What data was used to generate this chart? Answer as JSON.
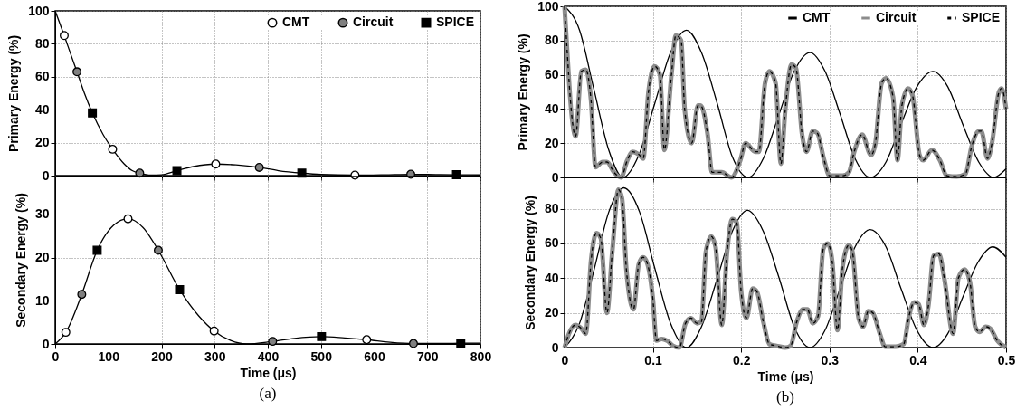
{
  "chart_data": [
    {
      "type": "line",
      "ylabel": "Primary Energy (%)",
      "xlim": [
        0,
        800
      ],
      "xticks": [
        0,
        100,
        200,
        300,
        400,
        500,
        600,
        700,
        800
      ],
      "ylim": [
        0,
        100
      ],
      "yticks": [
        0,
        20,
        40,
        60,
        80,
        100
      ],
      "tick_labels": "y",
      "grid": true,
      "legend": "top right",
      "series": [
        {
          "color": "#000000",
          "x": [
            0,
            17,
            30,
            41,
            55,
            70,
            90,
            108,
            130,
            145,
            159,
            180,
            200,
            229,
            260,
            302,
            340,
            384,
            420,
            464,
            500,
            564,
            620,
            669,
            720,
            755,
            800
          ],
          "values": [
            100,
            85,
            73,
            63,
            50,
            38,
            25,
            16,
            7,
            3,
            1.5,
            0.3,
            0.5,
            3,
            5.5,
            7,
            6.5,
            5,
            3,
            1.5,
            0.7,
            0.3,
            0.5,
            0.8,
            0.6,
            0.5,
            0.4
          ]
        },
        {
          "name": "CMT",
          "type": "scatter",
          "marker": "circle",
          "color": "#ffffff",
          "x": [
            17,
            108,
            302,
            564
          ],
          "values": [
            85,
            16,
            7,
            0.3
          ]
        },
        {
          "name": "Circuit",
          "type": "scatter",
          "marker": "circle",
          "color": "#808080",
          "x": [
            41,
            159,
            384,
            669
          ],
          "values": [
            63,
            1.5,
            5,
            0.8
          ]
        },
        {
          "name": "SPICE",
          "type": "scatter",
          "marker": "square",
          "color": "#000000",
          "x": [
            70,
            229,
            464,
            755
          ],
          "values": [
            38,
            3,
            1.5,
            0.5
          ]
        }
      ]
    },
    {
      "type": "line",
      "ylabel": "Primary Energy (%)",
      "xlim": [
        0,
        0.5
      ],
      "xticks": [
        0,
        0.1,
        0.2,
        0.3,
        0.4,
        0.5
      ],
      "ylim": [
        0,
        100
      ],
      "yticks": [
        0,
        20,
        40,
        60,
        80,
        100
      ],
      "tick_labels": "y",
      "grid": true,
      "legend": "top right",
      "series": [
        {
          "name": "CMT",
          "color": "#000000",
          "line_style": "solid",
          "x": [
            0,
            0.017,
            0.033,
            0.05,
            0.066,
            0.084,
            0.102,
            0.12,
            0.138,
            0.155,
            0.173,
            0.19,
            0.208,
            0.225,
            0.243,
            0.26,
            0.278,
            0.295,
            0.312,
            0.329,
            0.346,
            0.364,
            0.381,
            0.399,
            0.417,
            0.434,
            0.451,
            0.469,
            0.486,
            0.5
          ],
          "values": [
            100,
            86,
            52,
            16,
            0,
            13,
            43,
            73,
            86,
            73,
            43,
            12,
            0,
            11,
            37,
            62,
            73,
            62,
            37,
            11,
            0,
            9,
            31,
            53,
            62,
            53,
            31,
            9,
            0,
            5
          ]
        },
        {
          "name": "Circuit",
          "color": "#8c8c8c",
          "line_style": "solid",
          "x": [
            0,
            0.0125,
            0.019,
            0.024,
            0.03,
            0.035,
            0.043,
            0.048,
            0.056,
            0.064,
            0.071,
            0.077,
            0.085,
            0.089,
            0.095,
            0.102,
            0.108,
            0.113,
            0.121,
            0.126,
            0.132,
            0.136,
            0.144,
            0.151,
            0.154,
            0.162,
            0.167,
            0.178,
            0.189,
            0.199,
            0.205,
            0.216,
            0.22,
            0.227,
            0.232,
            0.239,
            0.245,
            0.25,
            0.257,
            0.262,
            0.269,
            0.274,
            0.281,
            0.286,
            0.294,
            0.3,
            0.315,
            0.322,
            0.328,
            0.337,
            0.347,
            0.352,
            0.359,
            0.364,
            0.372,
            0.377,
            0.382,
            0.389,
            0.394,
            0.402,
            0.406,
            0.416,
            0.425,
            0.433,
            0.444,
            0.454,
            0.461,
            0.469,
            0.472,
            0.479,
            0.484,
            0.492,
            0.495,
            0.5
          ],
          "values": [
            100,
            24,
            62,
            63,
            45,
            6,
            9,
            9,
            3,
            0,
            10,
            15,
            13,
            11,
            50,
            65,
            60,
            16,
            60,
            83,
            80,
            40,
            20,
            42,
            42,
            25,
            3,
            3,
            0,
            10,
            20,
            15,
            15,
            55,
            62,
            55,
            8,
            40,
            66,
            64,
            25,
            15,
            27,
            26,
            10,
            1,
            1,
            3,
            15,
            25,
            13,
            20,
            55,
            58,
            47,
            10,
            42,
            52,
            48,
            13,
            10,
            16,
            10,
            1,
            0.5,
            2,
            18,
            27,
            27,
            11,
            20,
            50,
            52,
            40
          ]
        },
        {
          "name": "SPICE",
          "color": "#000000",
          "line_style": "dashed",
          "x": [
            0,
            0.0125,
            0.019,
            0.024,
            0.03,
            0.035,
            0.043,
            0.048,
            0.056,
            0.064,
            0.071,
            0.077,
            0.085,
            0.089,
            0.095,
            0.102,
            0.108,
            0.113,
            0.121,
            0.126,
            0.132,
            0.136,
            0.144,
            0.151,
            0.154,
            0.162,
            0.167,
            0.178,
            0.189,
            0.199,
            0.205,
            0.216,
            0.22,
            0.227,
            0.232,
            0.239,
            0.245,
            0.25,
            0.257,
            0.262,
            0.269,
            0.274,
            0.281,
            0.286,
            0.294,
            0.3,
            0.315,
            0.322,
            0.328,
            0.337,
            0.347,
            0.352,
            0.359,
            0.364,
            0.372,
            0.377,
            0.382,
            0.389,
            0.394,
            0.402,
            0.406,
            0.416,
            0.425,
            0.433,
            0.444,
            0.454,
            0.461,
            0.469,
            0.472,
            0.479,
            0.484,
            0.492,
            0.495,
            0.5
          ],
          "values": [
            100,
            24,
            62,
            63,
            45,
            6,
            9,
            9,
            3,
            0,
            10,
            15,
            13,
            11,
            50,
            65,
            60,
            16,
            60,
            83,
            80,
            40,
            20,
            42,
            42,
            25,
            3,
            3,
            0,
            10,
            20,
            15,
            15,
            55,
            62,
            55,
            8,
            40,
            66,
            64,
            25,
            15,
            27,
            26,
            10,
            1,
            1,
            3,
            15,
            25,
            13,
            20,
            55,
            58,
            47,
            10,
            42,
            52,
            48,
            13,
            10,
            16,
            10,
            1,
            0.5,
            2,
            18,
            27,
            27,
            11,
            20,
            50,
            52,
            40
          ]
        }
      ]
    },
    {
      "type": "line",
      "xlabel": "Time (μs)",
      "ylabel": "Secondary Energy (%)",
      "xlim": [
        0,
        800
      ],
      "xticks": [
        0,
        100,
        200,
        300,
        400,
        500,
        600,
        700,
        800
      ],
      "ylim": [
        0,
        39
      ],
      "yticks": [
        0,
        10,
        20,
        30
      ],
      "grid": true,
      "annotations": [
        "(a)"
      ],
      "series": [
        {
          "color": "#000000",
          "x": [
            0,
            20,
            50,
            79,
            110,
            137,
            165,
            194,
            234,
            270,
            299,
            330,
            360,
            409,
            450,
            501,
            545,
            586,
            630,
            674,
            720,
            763,
            800
          ],
          "values": [
            0,
            2.7,
            11.5,
            21.7,
            27.5,
            29,
            27,
            21.7,
            12.6,
            6.5,
            3,
            0.8,
            0,
            0.6,
            1.3,
            1.7,
            1.4,
            1.0,
            0.4,
            0.1,
            0.1,
            0.2,
            0.2
          ]
        },
        {
          "type": "scatter",
          "marker": "circle",
          "color": "#ffffff",
          "x": [
            20,
            137,
            299,
            586
          ],
          "values": [
            2.7,
            29,
            3,
            1.0
          ]
        },
        {
          "type": "scatter",
          "marker": "circle",
          "color": "#808080",
          "x": [
            50,
            194,
            409,
            674
          ],
          "values": [
            11.5,
            21.7,
            0.6,
            0.1
          ]
        },
        {
          "type": "scatter",
          "marker": "square",
          "color": "#000000",
          "x": [
            79,
            234,
            501,
            763
          ],
          "values": [
            21.7,
            12.6,
            1.7,
            0.2
          ]
        }
      ]
    },
    {
      "type": "line",
      "xlabel": "Time (μs)",
      "ylabel": "Secondary Energy (%)",
      "xlim": [
        0,
        0.5
      ],
      "xticks": [
        0,
        0.1,
        0.2,
        0.3,
        0.4,
        0.5
      ],
      "ylim": [
        0,
        98
      ],
      "yticks": [
        0,
        20,
        40,
        60,
        80
      ],
      "grid": true,
      "annotations": [
        "(b)"
      ],
      "series": [
        {
          "color": "#000000",
          "line_style": "solid",
          "x": [
            0,
            0.017,
            0.034,
            0.05,
            0.067,
            0.085,
            0.102,
            0.12,
            0.138,
            0.155,
            0.173,
            0.19,
            0.207,
            0.225,
            0.243,
            0.26,
            0.278,
            0.295,
            0.312,
            0.329,
            0.346,
            0.364,
            0.381,
            0.399,
            0.417,
            0.434,
            0.451,
            0.468,
            0.485,
            0.5
          ],
          "values": [
            0,
            14,
            46,
            78,
            92,
            78,
            46,
            14,
            0,
            12,
            40,
            67,
            79,
            67,
            40,
            12,
            0,
            10,
            34,
            58,
            68,
            58,
            34,
            10,
            0,
            8,
            29,
            49,
            58,
            52
          ]
        },
        {
          "color": "#8c8c8c",
          "line_style": "solid",
          "x": [
            0,
            0.005,
            0.012,
            0.019,
            0.024,
            0.03,
            0.036,
            0.041,
            0.048,
            0.054,
            0.061,
            0.065,
            0.07,
            0.078,
            0.084,
            0.089,
            0.094,
            0.1,
            0.104,
            0.11,
            0.116,
            0.123,
            0.13,
            0.137,
            0.143,
            0.15,
            0.155,
            0.16,
            0.166,
            0.171,
            0.178,
            0.184,
            0.19,
            0.195,
            0.2,
            0.206,
            0.213,
            0.218,
            0.225,
            0.232,
            0.24,
            0.25,
            0.256,
            0.263,
            0.27,
            0.275,
            0.281,
            0.287,
            0.293,
            0.298,
            0.303,
            0.309,
            0.315,
            0.322,
            0.326,
            0.333,
            0.338,
            0.344,
            0.349,
            0.357,
            0.363,
            0.375,
            0.384,
            0.39,
            0.396,
            0.401,
            0.407,
            0.412,
            0.418,
            0.424,
            0.43,
            0.44,
            0.446,
            0.453,
            0.459,
            0.465,
            0.47,
            0.477,
            0.482,
            0.49,
            0.5
          ],
          "values": [
            0,
            8,
            13,
            11,
            8,
            50,
            66,
            63,
            20,
            55,
            91,
            86,
            45,
            22,
            48,
            52,
            48,
            28,
            4,
            5,
            4,
            1,
            0,
            14,
            17,
            14,
            15,
            55,
            64,
            58,
            13,
            55,
            74,
            72,
            32,
            17,
            34,
            32,
            15,
            2,
            1,
            0,
            1,
            15,
            22,
            22,
            14,
            18,
            57,
            60,
            50,
            10,
            47,
            59,
            55,
            17,
            12,
            21,
            20,
            8,
            0.5,
            0.5,
            2,
            18,
            26,
            25,
            13,
            24,
            53,
            54,
            40,
            8,
            40,
            45,
            38,
            12,
            9,
            12,
            11,
            4,
            0
          ]
        },
        {
          "color": "#000000",
          "line_style": "dashed",
          "x": [
            0,
            0.005,
            0.012,
            0.019,
            0.024,
            0.03,
            0.036,
            0.041,
            0.048,
            0.054,
            0.061,
            0.065,
            0.07,
            0.078,
            0.084,
            0.089,
            0.094,
            0.1,
            0.104,
            0.11,
            0.116,
            0.123,
            0.13,
            0.137,
            0.143,
            0.15,
            0.155,
            0.16,
            0.166,
            0.171,
            0.178,
            0.184,
            0.19,
            0.195,
            0.2,
            0.206,
            0.213,
            0.218,
            0.225,
            0.232,
            0.24,
            0.25,
            0.256,
            0.263,
            0.27,
            0.275,
            0.281,
            0.287,
            0.293,
            0.298,
            0.303,
            0.309,
            0.315,
            0.322,
            0.326,
            0.333,
            0.338,
            0.344,
            0.349,
            0.357,
            0.363,
            0.375,
            0.384,
            0.39,
            0.396,
            0.401,
            0.407,
            0.412,
            0.418,
            0.424,
            0.43,
            0.44,
            0.446,
            0.453,
            0.459,
            0.465,
            0.47,
            0.477,
            0.482,
            0.49,
            0.5
          ],
          "values": [
            0,
            8,
            13,
            11,
            8,
            50,
            66,
            63,
            20,
            55,
            91,
            86,
            45,
            22,
            48,
            52,
            48,
            28,
            4,
            5,
            4,
            1,
            0,
            14,
            17,
            14,
            15,
            55,
            64,
            58,
            13,
            55,
            74,
            72,
            32,
            17,
            34,
            32,
            15,
            2,
            1,
            0,
            1,
            15,
            22,
            22,
            14,
            18,
            57,
            60,
            50,
            10,
            47,
            59,
            55,
            17,
            12,
            21,
            20,
            8,
            0.5,
            0.5,
            2,
            18,
            26,
            25,
            13,
            24,
            53,
            54,
            40,
            8,
            40,
            45,
            38,
            12,
            9,
            12,
            11,
            4,
            0
          ]
        }
      ]
    }
  ]
}
